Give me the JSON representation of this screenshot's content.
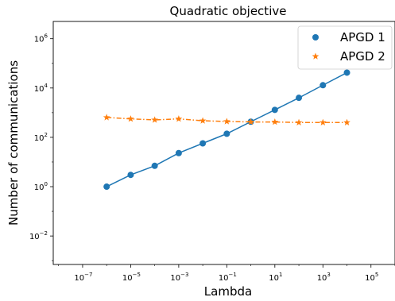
{
  "chart_data": {
    "type": "line",
    "title": "Quadratic objective",
    "xlabel": "Lambda",
    "ylabel": "Number of communications",
    "xscale": "log",
    "yscale": "log",
    "xlim": [
      6e-09,
      1000000.0
    ],
    "ylim": [
      0.0007,
      5000000
    ],
    "x_ticks": [
      {
        "value": 1e-07,
        "base": "10",
        "exp": "−7"
      },
      {
        "value": 1e-05,
        "base": "10",
        "exp": "−5"
      },
      {
        "value": 0.001,
        "base": "10",
        "exp": "−3"
      },
      {
        "value": 0.1,
        "base": "10",
        "exp": "−1"
      },
      {
        "value": 10.0,
        "base": "10",
        "exp": "1"
      },
      {
        "value": 1000.0,
        "base": "10",
        "exp": "3"
      },
      {
        "value": 100000.0,
        "base": "10",
        "exp": "5"
      }
    ],
    "y_ticks": [
      {
        "value": 0.01,
        "base": "10",
        "exp": "−2"
      },
      {
        "value": 1.0,
        "base": "10",
        "exp": "0"
      },
      {
        "value": 100.0,
        "base": "10",
        "exp": "2"
      },
      {
        "value": 10000.0,
        "base": "10",
        "exp": "4"
      },
      {
        "value": 1000000.0,
        "base": "10",
        "exp": "6"
      }
    ],
    "legend_position": "top-right",
    "series": [
      {
        "name": "APGD 1",
        "color": "#1f77b4",
        "marker": "circle",
        "linestyle": "solid",
        "x": [
          1e-06,
          1e-05,
          0.0001,
          0.001,
          0.01,
          0.1,
          1.0,
          10.0,
          100.0,
          1000.0,
          10000.0
        ],
        "y": [
          1.0,
          3.0,
          7.0,
          23,
          57,
          140,
          430,
          1300,
          4000,
          13000,
          42000
        ]
      },
      {
        "name": "APGD 2",
        "color": "#ff7f0e",
        "marker": "star",
        "linestyle": "dashdot",
        "x": [
          1e-06,
          1e-05,
          0.0001,
          0.001,
          0.01,
          0.1,
          1.0,
          10.0,
          100.0,
          1000.0,
          10000.0
        ],
        "y": [
          640,
          560,
          510,
          560,
          470,
          440,
          420,
          420,
          400,
          400,
          400
        ]
      }
    ]
  }
}
